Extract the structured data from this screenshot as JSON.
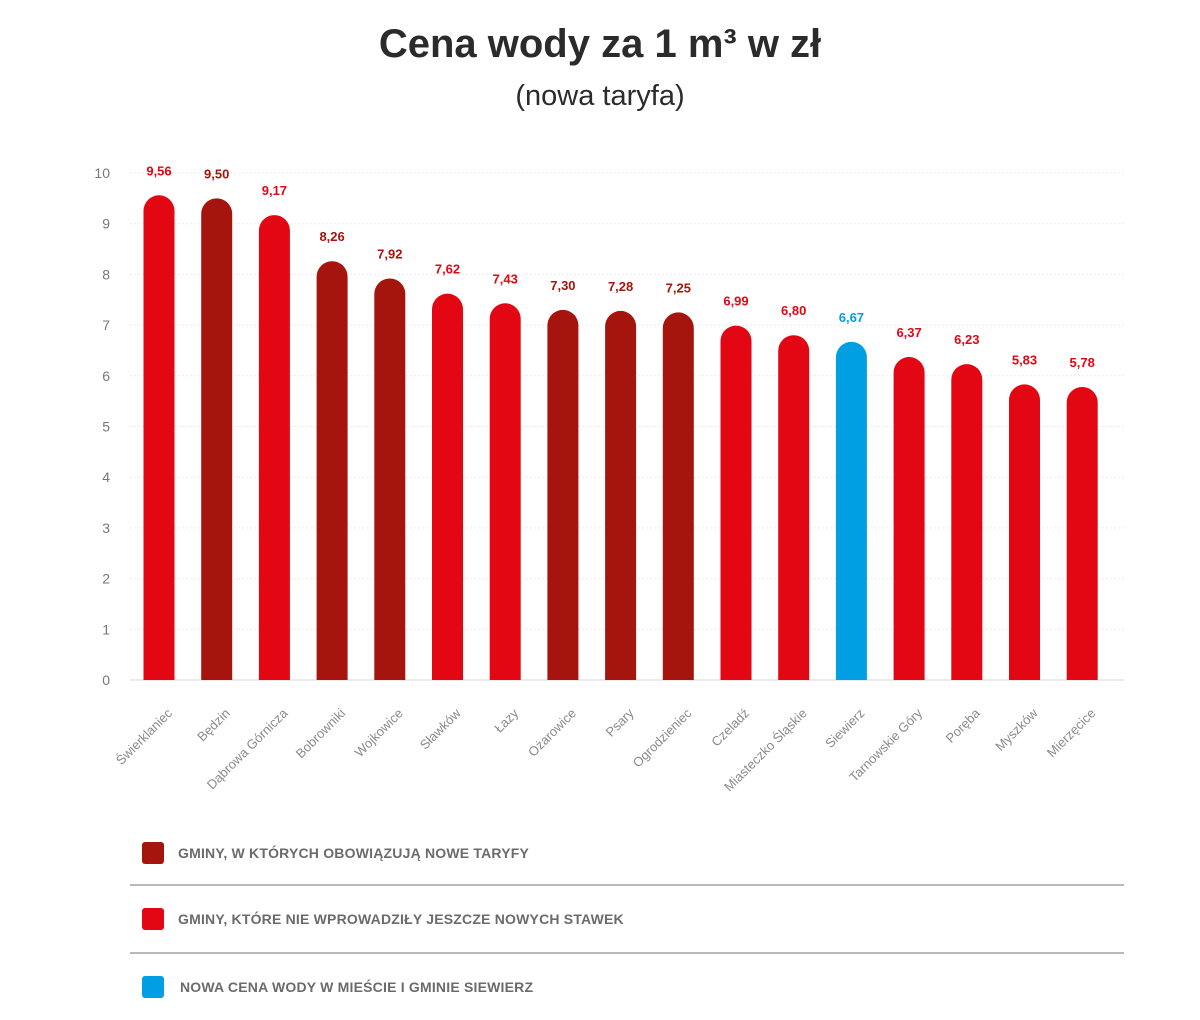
{
  "title": "Cena wody za 1 m³ w zł",
  "subtitle": "(nowa taryfa)",
  "colors": {
    "new_tariff": "#a5150d",
    "old_tariff": "#e30613",
    "siewierz": "#009fe3",
    "value_label_blue": "#009fe3"
  },
  "legend": [
    {
      "label": "GMINY, W KTÓRYCH OBOWIĄZUJĄ NOWE TARYFY",
      "color": "#a5150d"
    },
    {
      "label": "GMINY, KTÓRE NIE WPROWADZIŁY JESZCZE NOWYCH STAWEK",
      "color": "#e30613"
    },
    {
      "label": "NOWA CENA WODY W MIEŚCIE I GMINIE SIEWIERZ",
      "color": "#009fe3"
    }
  ],
  "chart_data": {
    "type": "bar",
    "title": "Cena wody za 1 m³ w zł",
    "subtitle": "(nowa taryfa)",
    "xlabel": "",
    "ylabel": "",
    "ylim": [
      0,
      10
    ],
    "yticks": [
      "0",
      "1",
      "2",
      "3",
      "4",
      "5",
      "6",
      "7",
      "8",
      "9",
      "10"
    ],
    "grid": true,
    "categories": [
      "Świerklaniec",
      "Będzin",
      "Dąbrowa Górnicza",
      "Bobrowniki",
      "Wojkowice",
      "Sławków",
      "Łazy",
      "Ożarowice",
      "Psary",
      "Ogrodzieniec",
      "Czeladź",
      "Miasteczko Śląskie",
      "Siewierz",
      "Tarnowskie Góry",
      "Poręba",
      "Myszków",
      "Mierzęcice"
    ],
    "values": [
      9.56,
      9.5,
      9.17,
      8.26,
      7.92,
      7.62,
      7.43,
      7.3,
      7.28,
      7.25,
      6.99,
      6.8,
      6.67,
      6.37,
      6.23,
      5.83,
      5.78
    ],
    "value_labels": [
      "9,56",
      "9,50",
      "9,17",
      "8,26",
      "7,92",
      "7,62",
      "7,43",
      "7,30",
      "7,28",
      "7,25",
      "6,99",
      "6,80",
      "6,67",
      "6,37",
      "6,23",
      "5,83",
      "5,78"
    ],
    "groups": [
      "old",
      "new",
      "old",
      "new",
      "new",
      "old",
      "old",
      "new",
      "new",
      "new",
      "old",
      "old",
      "siewierz",
      "old",
      "old",
      "old",
      "old"
    ],
    "group_colors": {
      "new": "#a5150d",
      "old": "#e30613",
      "siewierz": "#009fe3"
    },
    "legend_position": "bottom"
  }
}
